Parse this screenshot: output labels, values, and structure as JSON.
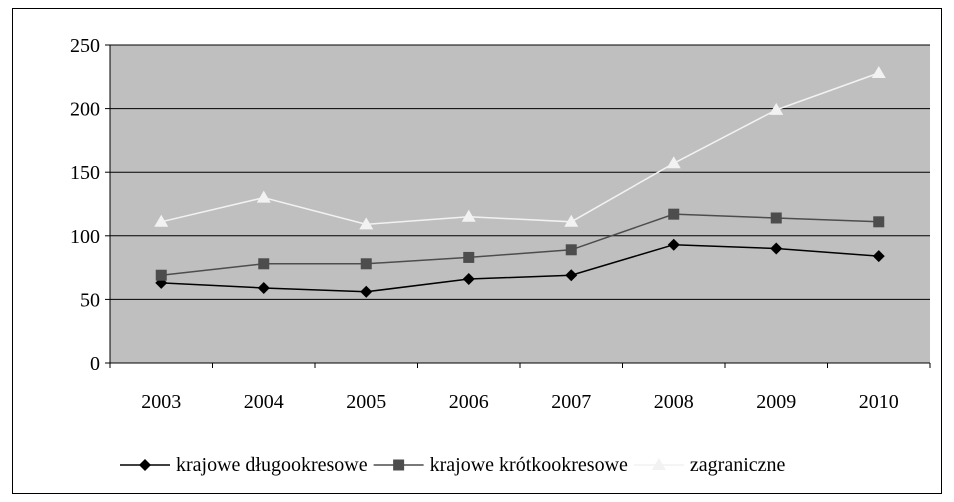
{
  "chart_data": {
    "type": "line",
    "categories": [
      "2003",
      "2004",
      "2005",
      "2006",
      "2007",
      "2008",
      "2009",
      "2010"
    ],
    "ylim": [
      0,
      250
    ],
    "yticks": [
      0,
      50,
      100,
      150,
      200,
      250
    ],
    "grid": true,
    "legend_position": "bottom",
    "series": [
      {
        "name": "krajowe długookresowe",
        "marker": "diamond",
        "color": "#000000",
        "values": [
          63,
          59,
          56,
          66,
          69,
          93,
          90,
          84
        ]
      },
      {
        "name": "krajowe krótkookresowe",
        "marker": "square",
        "color": "#4d4d4d",
        "values": [
          69,
          78,
          78,
          83,
          89,
          117,
          114,
          111
        ]
      },
      {
        "name": "zagraniczne",
        "marker": "triangle",
        "color": "#f2f2f2",
        "values": [
          111,
          130,
          109,
          115,
          111,
          157,
          199,
          228
        ]
      }
    ],
    "plot_background": "#bfbfbf"
  }
}
